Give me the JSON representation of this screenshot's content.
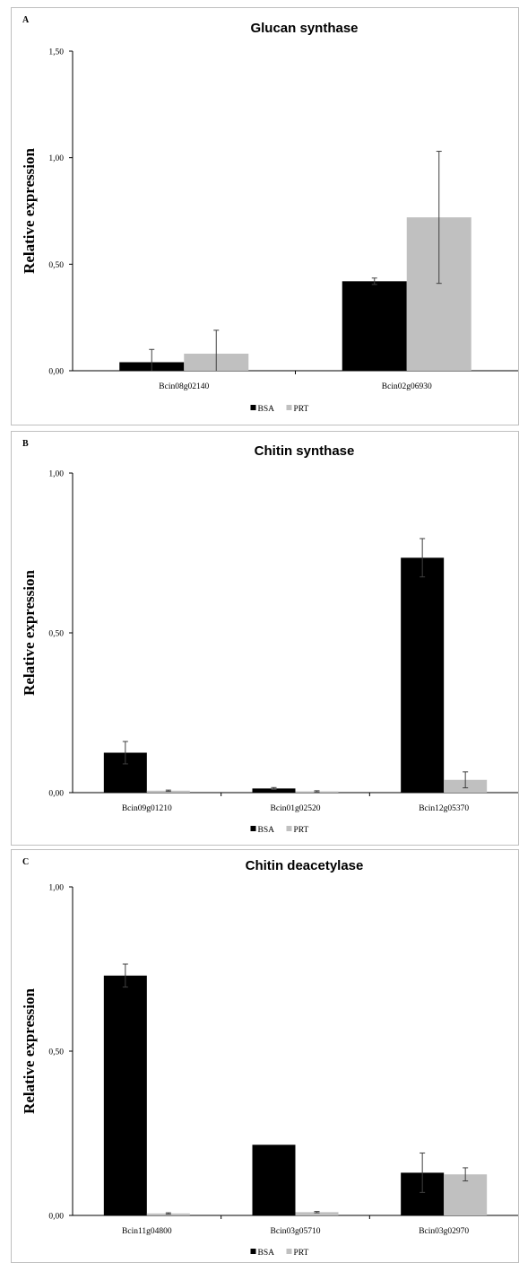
{
  "chart_data": [
    {
      "type": "bar",
      "panel_label": "A",
      "title": "Glucan synthase",
      "ylabel": "Relative expression",
      "ylim": [
        0,
        1.5
      ],
      "yticks": [
        "0,00",
        "0,50",
        "1,00",
        "1,50"
      ],
      "ytick_values": [
        0,
        0.5,
        1.0,
        1.5
      ],
      "categories": [
        "Bcin08g02140",
        "Bcin02g06930"
      ],
      "series": [
        {
          "name": "BSA",
          "color": "#000000",
          "values": [
            0.04,
            0.42
          ],
          "errors": [
            0.06,
            0.015
          ]
        },
        {
          "name": "PRT",
          "color": "#c0c0c0",
          "values": [
            0.08,
            0.72
          ],
          "errors": [
            0.11,
            0.31
          ]
        }
      ],
      "legend_position": "bottom-center",
      "grid": false
    },
    {
      "type": "bar",
      "panel_label": "B",
      "title": "Chitin synthase",
      "ylabel": "Relative expression",
      "ylim": [
        0,
        1.0
      ],
      "yticks": [
        "0,00",
        "0,50",
        "1,00"
      ],
      "ytick_values": [
        0,
        0.5,
        1.0
      ],
      "categories": [
        "Bcin09g01210",
        "Bcin01g02520",
        "Bcin12g05370"
      ],
      "series": [
        {
          "name": "BSA",
          "color": "#000000",
          "values": [
            0.125,
            0.013,
            0.735
          ],
          "errors": [
            0.035,
            0.003,
            0.06
          ]
        },
        {
          "name": "PRT",
          "color": "#c0c0c0",
          "values": [
            0.006,
            0.004,
            0.04
          ],
          "errors": [
            0.002,
            0.002,
            0.025
          ]
        }
      ],
      "legend_position": "bottom-center",
      "grid": false
    },
    {
      "type": "bar",
      "panel_label": "C",
      "title": "Chitin deacetylase",
      "ylabel": "Relative expression",
      "ylim": [
        0,
        1.0
      ],
      "yticks": [
        "0,00",
        "0,50",
        "1,00"
      ],
      "ytick_values": [
        0,
        0.5,
        1.0
      ],
      "categories": [
        "Bcin11g04800",
        "Bcin03g05710",
        "Bcin03g02970"
      ],
      "series": [
        {
          "name": "BSA",
          "color": "#000000",
          "values": [
            0.73,
            0.215,
            0.13
          ],
          "errors": [
            0.035,
            0.0,
            0.06
          ]
        },
        {
          "name": "PRT",
          "color": "#c0c0c0",
          "values": [
            0.006,
            0.01,
            0.125
          ],
          "errors": [
            0.002,
            0.002,
            0.02
          ]
        }
      ],
      "legend_position": "bottom-center",
      "grid": false
    }
  ]
}
